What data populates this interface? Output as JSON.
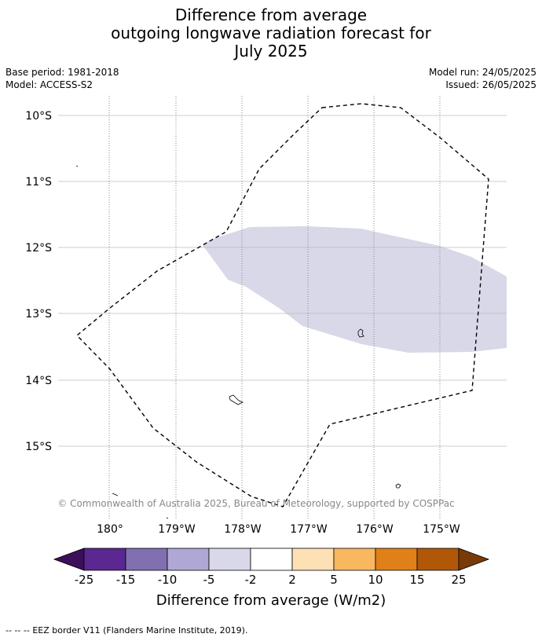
{
  "title": {
    "line1": "Difference from average",
    "line2": "outgoing longwave radiation forecast for",
    "line3": "July 2025"
  },
  "meta": {
    "base_period": "Base period: 1981-2018",
    "model": "Model: ACCESS-S2",
    "model_run": "Model run: 24/05/2025",
    "issued": "Issued: 26/05/2025"
  },
  "map": {
    "lat_labels": [
      "10°S",
      "11°S",
      "12°S",
      "13°S",
      "14°S",
      "15°S"
    ],
    "lon_labels": [
      "180°",
      "179°W",
      "178°W",
      "177°W",
      "176°W",
      "175°W"
    ],
    "copyright": "© Commonwealth of Australia 2025, Bureau of Meteorology, supported by COSPPac",
    "anomaly_color": "#d8d8e8",
    "eez_style": "dashed black"
  },
  "colorbar": {
    "ticks": [
      "-25",
      "-15",
      "-10",
      "-5",
      "-2",
      "2",
      "5",
      "10",
      "15",
      "25"
    ],
    "colors": [
      "#3b0f5a",
      "#5a2890",
      "#8070b0",
      "#b0a8d4",
      "#d8d8e8",
      "#ffffff",
      "#fde0b4",
      "#f8b860",
      "#e08018",
      "#b05808",
      "#7a3a08"
    ],
    "label": "Difference from average (W/m2)"
  },
  "footer": {
    "legend_symbol": "--  --  --",
    "legend_text": "EEZ border V11 (Flanders Marine Institute, 2019)."
  }
}
